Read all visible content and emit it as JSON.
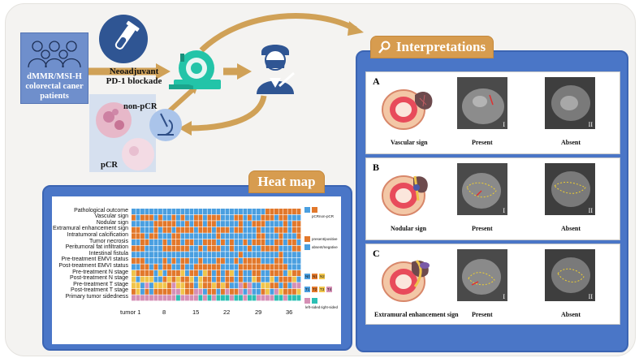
{
  "patients": {
    "line1": "dMMR/MSI-H",
    "line2": "colorectal caner",
    "line3": "patients"
  },
  "treatment": {
    "line1": "Neoadjuvant",
    "line2": "PD-1 blockade"
  },
  "pathology": {
    "non_pcr": "non-pCR",
    "pcr": "pCR"
  },
  "heatmap": {
    "title": "Heat map",
    "rows": [
      "Pathological outcome",
      "Vascular sign",
      "Nodular sign",
      "Extramural enhancement sign",
      "Intratumoral calcification",
      "Tumor necrosis",
      "Peritumoral fat infiltration",
      "Intestinal fistula",
      "Pre-treatment EMVI status",
      "Post-treatment EMVI status",
      "Pre-treatment N stage",
      "Post-treatment N stage",
      "Pre-treatment T stage",
      "Post-treatment T stage",
      "Primary tumor sidedness"
    ],
    "xticks": [
      "tumor 1",
      "8",
      "15",
      "22",
      "29",
      "36"
    ],
    "legend": {
      "pcr": "pCR",
      "non_pcr": "non-pCR",
      "present": "present/positive",
      "absent": "absent/negative",
      "n0": "N0",
      "n1": "N1",
      "n2": "N2",
      "t1": "T1",
      "t2": "T2",
      "t3": "T3",
      "t4": "T4",
      "left": "left-sided",
      "right": "right-sided"
    },
    "colors": {
      "blue": "#4a9fe0",
      "orange": "#e2782b",
      "yellow": "#f0c44a",
      "pink": "#d58fb5",
      "teal": "#2bbfb4"
    }
  },
  "interpretations": {
    "title": "Interpretations",
    "panels": [
      {
        "letter": "A",
        "sign": "Vascular sign",
        "present": "Present",
        "absent": "Absent",
        "i": "I",
        "ii": "II"
      },
      {
        "letter": "B",
        "sign": "Nodular sign",
        "present": "Present",
        "absent": "Absent",
        "i": "I",
        "ii": "II"
      },
      {
        "letter": "C",
        "sign": "Extramural enhancement sign",
        "present": "Present",
        "absent": "Absent",
        "i": "I",
        "ii": "II"
      }
    ]
  }
}
